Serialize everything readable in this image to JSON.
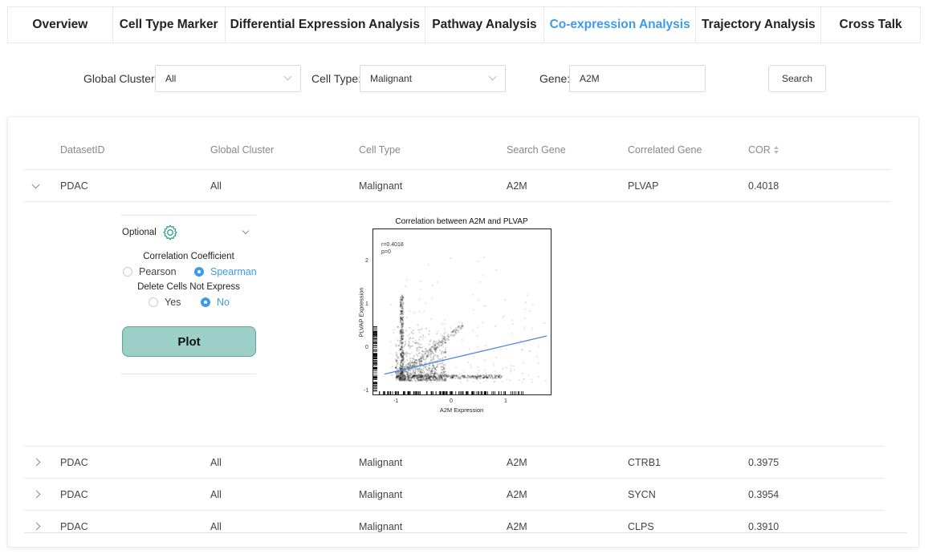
{
  "tabs": [
    {
      "label": "Overview",
      "active": false
    },
    {
      "label": "Cell Type Marker",
      "active": false
    },
    {
      "label": "Differential Expression Analysis",
      "active": false
    },
    {
      "label": "Pathway Analysis",
      "active": false
    },
    {
      "label": "Co-expression Analysis",
      "active": true
    },
    {
      "label": "Trajectory Analysis",
      "active": false
    },
    {
      "label": "Cross Talk",
      "active": false
    }
  ],
  "filters": {
    "global_cluster_label": "Global Cluster:",
    "global_cluster_value": "All",
    "cell_type_label": "Cell Type:",
    "cell_type_value": "Malignant",
    "gene_label": "Gene:",
    "gene_value": "A2M",
    "search_button": "Search"
  },
  "table": {
    "headers": [
      "DatasetID",
      "Global Cluster",
      "Cell Type",
      "Search Gene",
      "Correlated Gene",
      "COR"
    ],
    "rows": [
      [
        "PDAC",
        "All",
        "Malignant",
        "A2M",
        "PLVAP",
        "0.4018"
      ],
      [
        "PDAC",
        "All",
        "Malignant",
        "A2M",
        "CTRB1",
        "0.3975"
      ],
      [
        "PDAC",
        "All",
        "Malignant",
        "A2M",
        "SYCN",
        "0.3954"
      ],
      [
        "PDAC",
        "All",
        "Malignant",
        "A2M",
        "CLPS",
        "0.3910"
      ]
    ]
  },
  "options": {
    "optional_label": "Optional",
    "coef_title": "Correlation Coefficient",
    "pearson": "Pearson",
    "spearman": "Spearman",
    "delete_title": "Delete Cells Not Express",
    "yes": "Yes",
    "no": "No",
    "plot_button": "Plot"
  },
  "scatter": {
    "title": "Correlation between A2M and PLVAP",
    "xlabel": "A2M Expression",
    "ylabel": "PLVAP Expression",
    "r_text": "r=0.4018",
    "p_text": "p=0",
    "xticks": [
      "-1",
      "0",
      "1"
    ],
    "yticks": [
      "-1",
      "0",
      "1",
      "2"
    ],
    "line_color": "#4a86d8"
  },
  "chart_data": {
    "type": "scatter",
    "title": "Correlation between A2M and PLVAP",
    "xlabel": "A2M Expression",
    "ylabel": "PLVAP Expression",
    "xlim": [
      -1.4,
      1.8
    ],
    "ylim": [
      -1.1,
      2.7
    ],
    "annotations": [
      "r=0.4018",
      "p=0"
    ],
    "fit_line": {
      "x": [
        -1.2,
        1.7
      ],
      "y": [
        -0.6,
        0.27
      ]
    }
  },
  "colors": {
    "accent": "#3d9bea",
    "plot_button": "#9bcfc8"
  }
}
